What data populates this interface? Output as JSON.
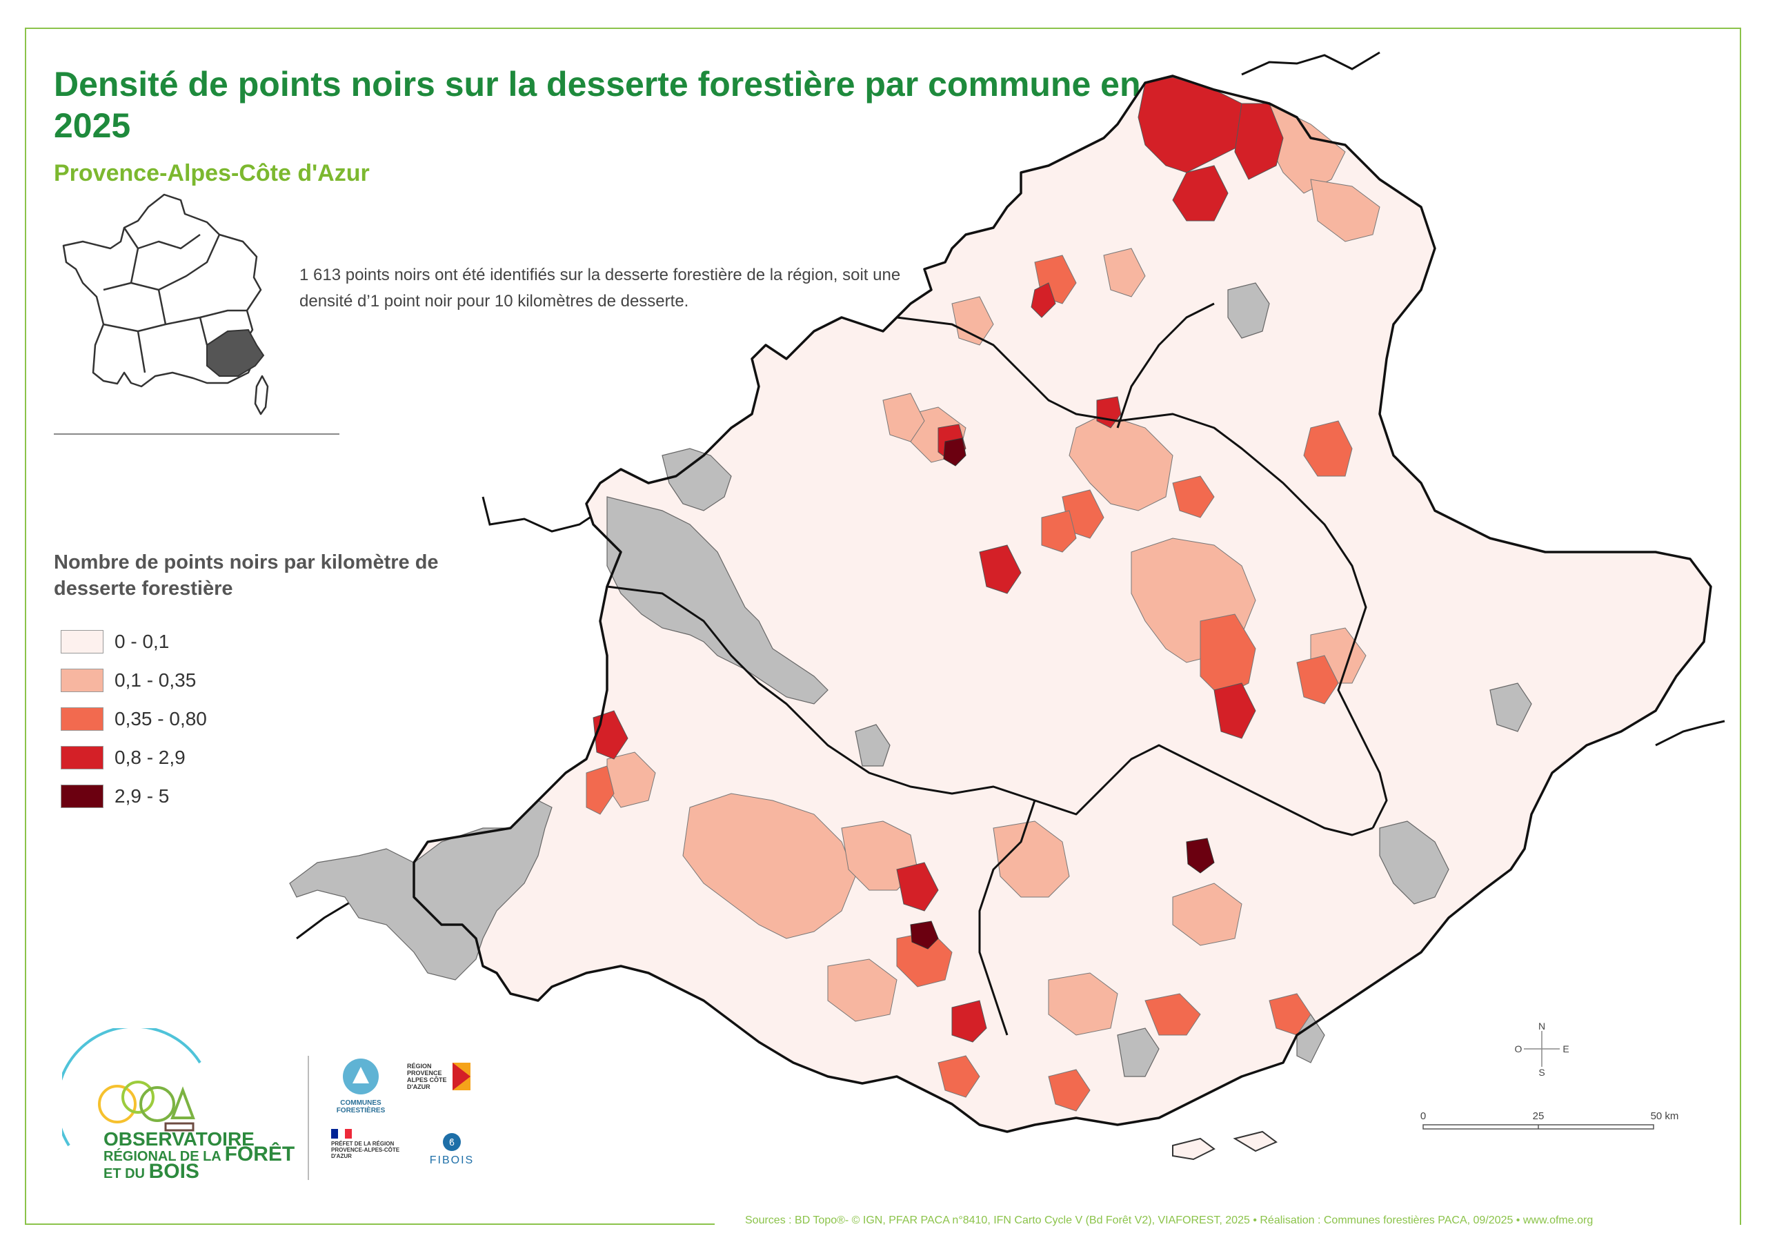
{
  "title": "Densité de points noirs sur la desserte forestière par commune en 2025",
  "subtitle": "Provence-Alpes-Côte d'Azur",
  "stat_text": "1 613 points noirs ont été identifiés sur la desserte forestière de la région, soit une densité d’1 point noir pour 10 kilomètres de desserte.",
  "legend": {
    "title": "Nombre de points noirs par kilomètre de desserte forestière",
    "classes": [
      {
        "label": "0 - 0,1",
        "color": "#fdf1ee"
      },
      {
        "label": "0,1 - 0,35",
        "color": "#f7b6a0"
      },
      {
        "label": "0,35 - 0,80",
        "color": "#f26a4f"
      },
      {
        "label": "0,8 - 2,9",
        "color": "#d42027"
      },
      {
        "label": "2,9 - 5",
        "color": "#6b0010"
      }
    ],
    "no_data_color": "#bdbdbd"
  },
  "compass": {
    "n": "N",
    "s": "S",
    "e": "E",
    "o": "O"
  },
  "scale": {
    "ticks": [
      "0",
      "25",
      "50 km"
    ]
  },
  "sources": "Sources : BD Topo®- © IGN, PFAR PACA n°8410, IFN Carto Cycle V (Bd Forêt V2), VIAFOREST, 2025 • Réalisation : Communes forestières PACA, 09/2025 • www.ofme.org",
  "logos": {
    "observatoire_line1": "OBSERVATOIRE",
    "observatoire_line2": "RÉGIONAL DE LA",
    "observatoire_line3": "FORÊT",
    "observatoire_line4": "ET DU",
    "observatoire_line5": "BOIS",
    "communes": "COMMUNES FORESTIÈRES",
    "region": "RÉGION PROVENCE ALPES CÔTE D'AZUR",
    "prefet": "PRÉFET DE LA RÉGION PROVENCE-ALPES-CÔTE D'AZUR",
    "fibois": "FIBOIS"
  }
}
